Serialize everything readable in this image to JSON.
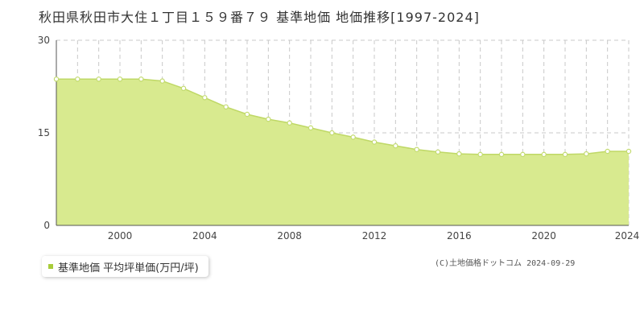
{
  "title": "秋田県秋田市大住１丁目１５９番７９ 基準地価 地価推移[1997-2024]",
  "legend": {
    "label": "基準地価 平均坪単価(万円/坪)"
  },
  "copyright": "(C)土地価格ドットコム 2024-09-29",
  "colors": {
    "fill": "#d8ea8f",
    "line": "#bfd866",
    "marker_stroke": "#c3db70",
    "marker_fill": "#ffffff",
    "legend_swatch": "#a8cc3a",
    "grid": "#c8c8c8",
    "axis": "#555555"
  },
  "chart_data": {
    "type": "area",
    "title": "秋田県秋田市大住１丁目１５９番７９ 基準地価 地価推移[1997-2024]",
    "xlabel": "",
    "ylabel": "",
    "xlim": [
      1997,
      2024
    ],
    "ylim": [
      0,
      30
    ],
    "y_ticks": [
      0,
      15,
      30
    ],
    "x_ticks": [
      2000,
      2004,
      2008,
      2012,
      2016,
      2020,
      2024
    ],
    "grid": true,
    "legend_position": "bottom-left",
    "series": [
      {
        "name": "基準地価 平均坪単価(万円/坪)",
        "x": [
          1997,
          1998,
          1999,
          2000,
          2001,
          2002,
          2003,
          2004,
          2005,
          2006,
          2007,
          2008,
          2009,
          2010,
          2011,
          2012,
          2013,
          2014,
          2015,
          2016,
          2017,
          2018,
          2019,
          2020,
          2021,
          2022,
          2023,
          2024
        ],
        "values": [
          23.7,
          23.7,
          23.7,
          23.7,
          23.7,
          23.4,
          22.2,
          20.7,
          19.2,
          18.0,
          17.2,
          16.6,
          15.8,
          15.0,
          14.3,
          13.5,
          12.9,
          12.3,
          11.9,
          11.6,
          11.5,
          11.5,
          11.5,
          11.5,
          11.5,
          11.6,
          12.0,
          12.0
        ]
      }
    ]
  }
}
